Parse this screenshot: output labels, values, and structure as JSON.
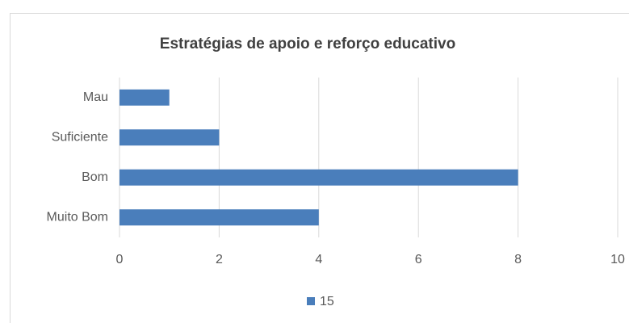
{
  "chart_data": {
    "type": "bar",
    "orientation": "horizontal",
    "title": "Estratégias de apoio e reforço educativo",
    "categories": [
      "Mau",
      "Suficiente",
      "Bom",
      "Muito Bom"
    ],
    "series": [
      {
        "name": "15",
        "color": "#4a7ebb",
        "values": [
          1,
          2,
          8,
          4
        ]
      }
    ],
    "xlim": [
      0,
      10
    ],
    "xticks": [
      0,
      2,
      4,
      6,
      8,
      10
    ],
    "grid": true,
    "legend": "bottom"
  }
}
